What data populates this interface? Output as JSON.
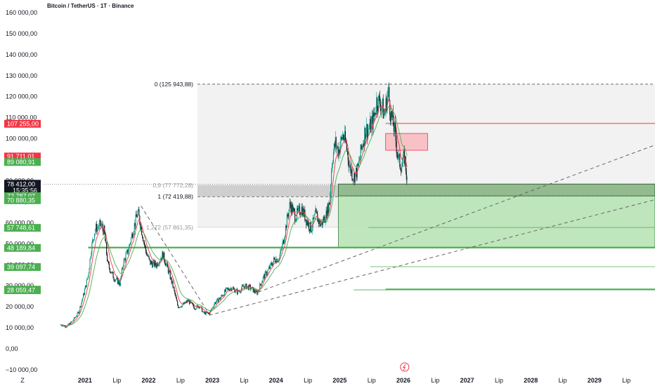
{
  "header": {
    "title": "Bitcoin / TetherUS · 1T · Binance"
  },
  "chart_data": {
    "type": "candlestick",
    "symbol": "Bitcoin / TetherUS",
    "timeframe": "1T",
    "exchange": "Binance",
    "y_ticks": [
      160000,
      150000,
      140000,
      130000,
      120000,
      110000,
      100000,
      90000,
      80000,
      70000,
      60000,
      50000,
      40000,
      30000,
      20000,
      10000,
      0,
      -10000
    ],
    "y_tick_labels": [
      "160 000,00",
      "150 000,00",
      "140 000,00",
      "130 000,00",
      "120 000,00",
      "110 000,00",
      "100 000,00",
      "90 000,00",
      "80 000,00",
      "70 000,00",
      "60 000,00",
      "50 000,00",
      "40 000,00",
      "30 000,00",
      "20 000,00",
      "10 000,00",
      "0,00",
      "−10 000,00"
    ],
    "ylim": [
      -13000,
      166000
    ],
    "x_ticks": [
      {
        "label": "2021",
        "date": 2021.0,
        "bold": true
      },
      {
        "label": "Lip",
        "date": 2021.5,
        "bold": false
      },
      {
        "label": "2022",
        "date": 2022.0,
        "bold": true
      },
      {
        "label": "Lip",
        "date": 2022.5,
        "bold": false
      },
      {
        "label": "2023",
        "date": 2023.0,
        "bold": true
      },
      {
        "label": "Lip",
        "date": 2023.5,
        "bold": false
      },
      {
        "label": "2024",
        "date": 2024.0,
        "bold": true
      },
      {
        "label": "Lip",
        "date": 2024.5,
        "bold": false
      },
      {
        "label": "2025",
        "date": 2025.0,
        "bold": true
      },
      {
        "label": "Lip",
        "date": 2025.5,
        "bold": false
      },
      {
        "label": "2026",
        "date": 2026.0,
        "bold": true
      },
      {
        "label": "Lip",
        "date": 2026.5,
        "bold": false
      },
      {
        "label": "2027",
        "date": 2027.0,
        "bold": true
      },
      {
        "label": "Lip",
        "date": 2027.5,
        "bold": false
      },
      {
        "label": "2028",
        "date": 2028.0,
        "bold": true
      },
      {
        "label": "Lip",
        "date": 2028.5,
        "bold": false
      },
      {
        "label": "2029",
        "date": 2029.0,
        "bold": true
      },
      {
        "label": "Lip",
        "date": 2029.5,
        "bold": false
      }
    ],
    "xlim": [
      2020.35,
      2029.95
    ],
    "corner_label": "Z",
    "price_path": [
      [
        2020.62,
        11500
      ],
      [
        2020.7,
        10500
      ],
      [
        2020.8,
        13000
      ],
      [
        2020.9,
        17500
      ],
      [
        2020.98,
        26000
      ],
      [
        2021.05,
        35000
      ],
      [
        2021.1,
        48000
      ],
      [
        2021.16,
        57000
      ],
      [
        2021.25,
        59000
      ],
      [
        2021.3,
        56000
      ],
      [
        2021.36,
        40000
      ],
      [
        2021.45,
        34000
      ],
      [
        2021.55,
        31000
      ],
      [
        2021.6,
        41000
      ],
      [
        2021.68,
        47000
      ],
      [
        2021.75,
        56000
      ],
      [
        2021.83,
        65000
      ],
      [
        2021.88,
        58000
      ],
      [
        2021.95,
        47000
      ],
      [
        2022.02,
        41000
      ],
      [
        2022.12,
        40000
      ],
      [
        2022.22,
        45000
      ],
      [
        2022.3,
        38000
      ],
      [
        2022.38,
        30000
      ],
      [
        2022.46,
        20000
      ],
      [
        2022.54,
        21000
      ],
      [
        2022.62,
        23000
      ],
      [
        2022.72,
        19500
      ],
      [
        2022.8,
        20500
      ],
      [
        2022.86,
        17000
      ],
      [
        2022.95,
        16800
      ],
      [
        2023.04,
        22000
      ],
      [
        2023.12,
        24000
      ],
      [
        2023.22,
        28000
      ],
      [
        2023.3,
        29000
      ],
      [
        2023.4,
        27000
      ],
      [
        2023.5,
        30000
      ],
      [
        2023.6,
        29000
      ],
      [
        2023.7,
        26500
      ],
      [
        2023.8,
        34000
      ],
      [
        2023.88,
        37500
      ],
      [
        2023.97,
        42500
      ],
      [
        2024.05,
        43000
      ],
      [
        2024.12,
        52000
      ],
      [
        2024.18,
        63000
      ],
      [
        2024.22,
        69000
      ],
      [
        2024.3,
        63000
      ],
      [
        2024.4,
        67000
      ],
      [
        2024.48,
        61000
      ],
      [
        2024.55,
        57000
      ],
      [
        2024.62,
        64000
      ],
      [
        2024.7,
        59000
      ],
      [
        2024.78,
        63000
      ],
      [
        2024.84,
        70000
      ],
      [
        2024.88,
        90000
      ],
      [
        2024.93,
        98000
      ],
      [
        2024.98,
        94000
      ],
      [
        2025.05,
        102000
      ],
      [
        2025.1,
        97000
      ],
      [
        2025.16,
        86000
      ],
      [
        2025.22,
        82000
      ],
      [
        2025.28,
        85000
      ],
      [
        2025.34,
        95000
      ],
      [
        2025.4,
        104000
      ],
      [
        2025.47,
        105000
      ],
      [
        2025.53,
        109000
      ],
      [
        2025.58,
        118000
      ],
      [
        2025.65,
        117000
      ],
      [
        2025.7,
        111000
      ],
      [
        2025.76,
        123000
      ],
      [
        2025.8,
        112000
      ],
      [
        2025.86,
        104000
      ],
      [
        2025.92,
        90000
      ],
      [
        2025.97,
        87000
      ],
      [
        2026.02,
        91500
      ],
      [
        2026.06,
        78400
      ]
    ],
    "annotations": {
      "fib_levels": [
        {
          "label": "0 (125 943,88)",
          "value": 125943.88,
          "faint": false
        },
        {
          "label": "0,9 (77 772,28)",
          "value": 77772.28,
          "faint": true
        },
        {
          "label": "1 (72 419,88)",
          "value": 72419.88,
          "faint": false
        },
        {
          "label": "1,272 (57 861,35)",
          "value": 57861.35,
          "faint": true
        }
      ],
      "red_line": 107255.0,
      "red_box": {
        "date_from": 2025.72,
        "date_to": 2026.38,
        "low": 94500,
        "high": 102500
      },
      "green_box": {
        "date_from": 2024.98,
        "low": 48189.84,
        "high": 78412.0
      },
      "dark_box": {
        "date_from": 2024.98,
        "low": 72787.07,
        "high": 78412.0
      },
      "green_lines": [
        {
          "value": 57748.61,
          "date_from": 2025.45
        },
        {
          "value": 39097.74,
          "date_from": 2025.48
        },
        {
          "value": 28339.92,
          "date_from": 2025.72
        },
        {
          "value": 28059.47,
          "date_from": 2025.22
        }
      ],
      "support_line": 48189.84
    },
    "price_badges": [
      {
        "text": "107 255,00",
        "value": 107255.0,
        "color": "#f23645"
      },
      {
        "text": "91 711,01",
        "value": 91711.01,
        "color": "#f23645"
      },
      {
        "text": "89 080,91",
        "value": 89080.91,
        "color": "#4caf50"
      },
      {
        "text": "72 787,07",
        "value": 72787.07,
        "color": "#4caf50"
      },
      {
        "text": "70 880,35",
        "value": 70880.35,
        "color": "#4caf50"
      },
      {
        "text": "57 748,61",
        "value": 57748.61,
        "color": "#4caf50"
      },
      {
        "text": "48 189,84",
        "value": 48189.84,
        "color": "#4caf50"
      },
      {
        "text": "39 097,74",
        "value": 39097.74,
        "color": "#4caf50"
      },
      {
        "text": "28 339,92",
        "value": 28339.92,
        "color": "#4caf50"
      },
      {
        "text": "28 059,47",
        "value": 28059.47,
        "color": "#4caf50"
      }
    ],
    "current_price": {
      "text": "78 412,00",
      "countdown": "15:35:56",
      "value": 78412.0
    },
    "colors": {
      "up": "#089981",
      "down": "#131722",
      "ma_red": "#f23645",
      "ma_green": "#4caf50",
      "red": "#f23645",
      "green": "#4caf50"
    }
  }
}
